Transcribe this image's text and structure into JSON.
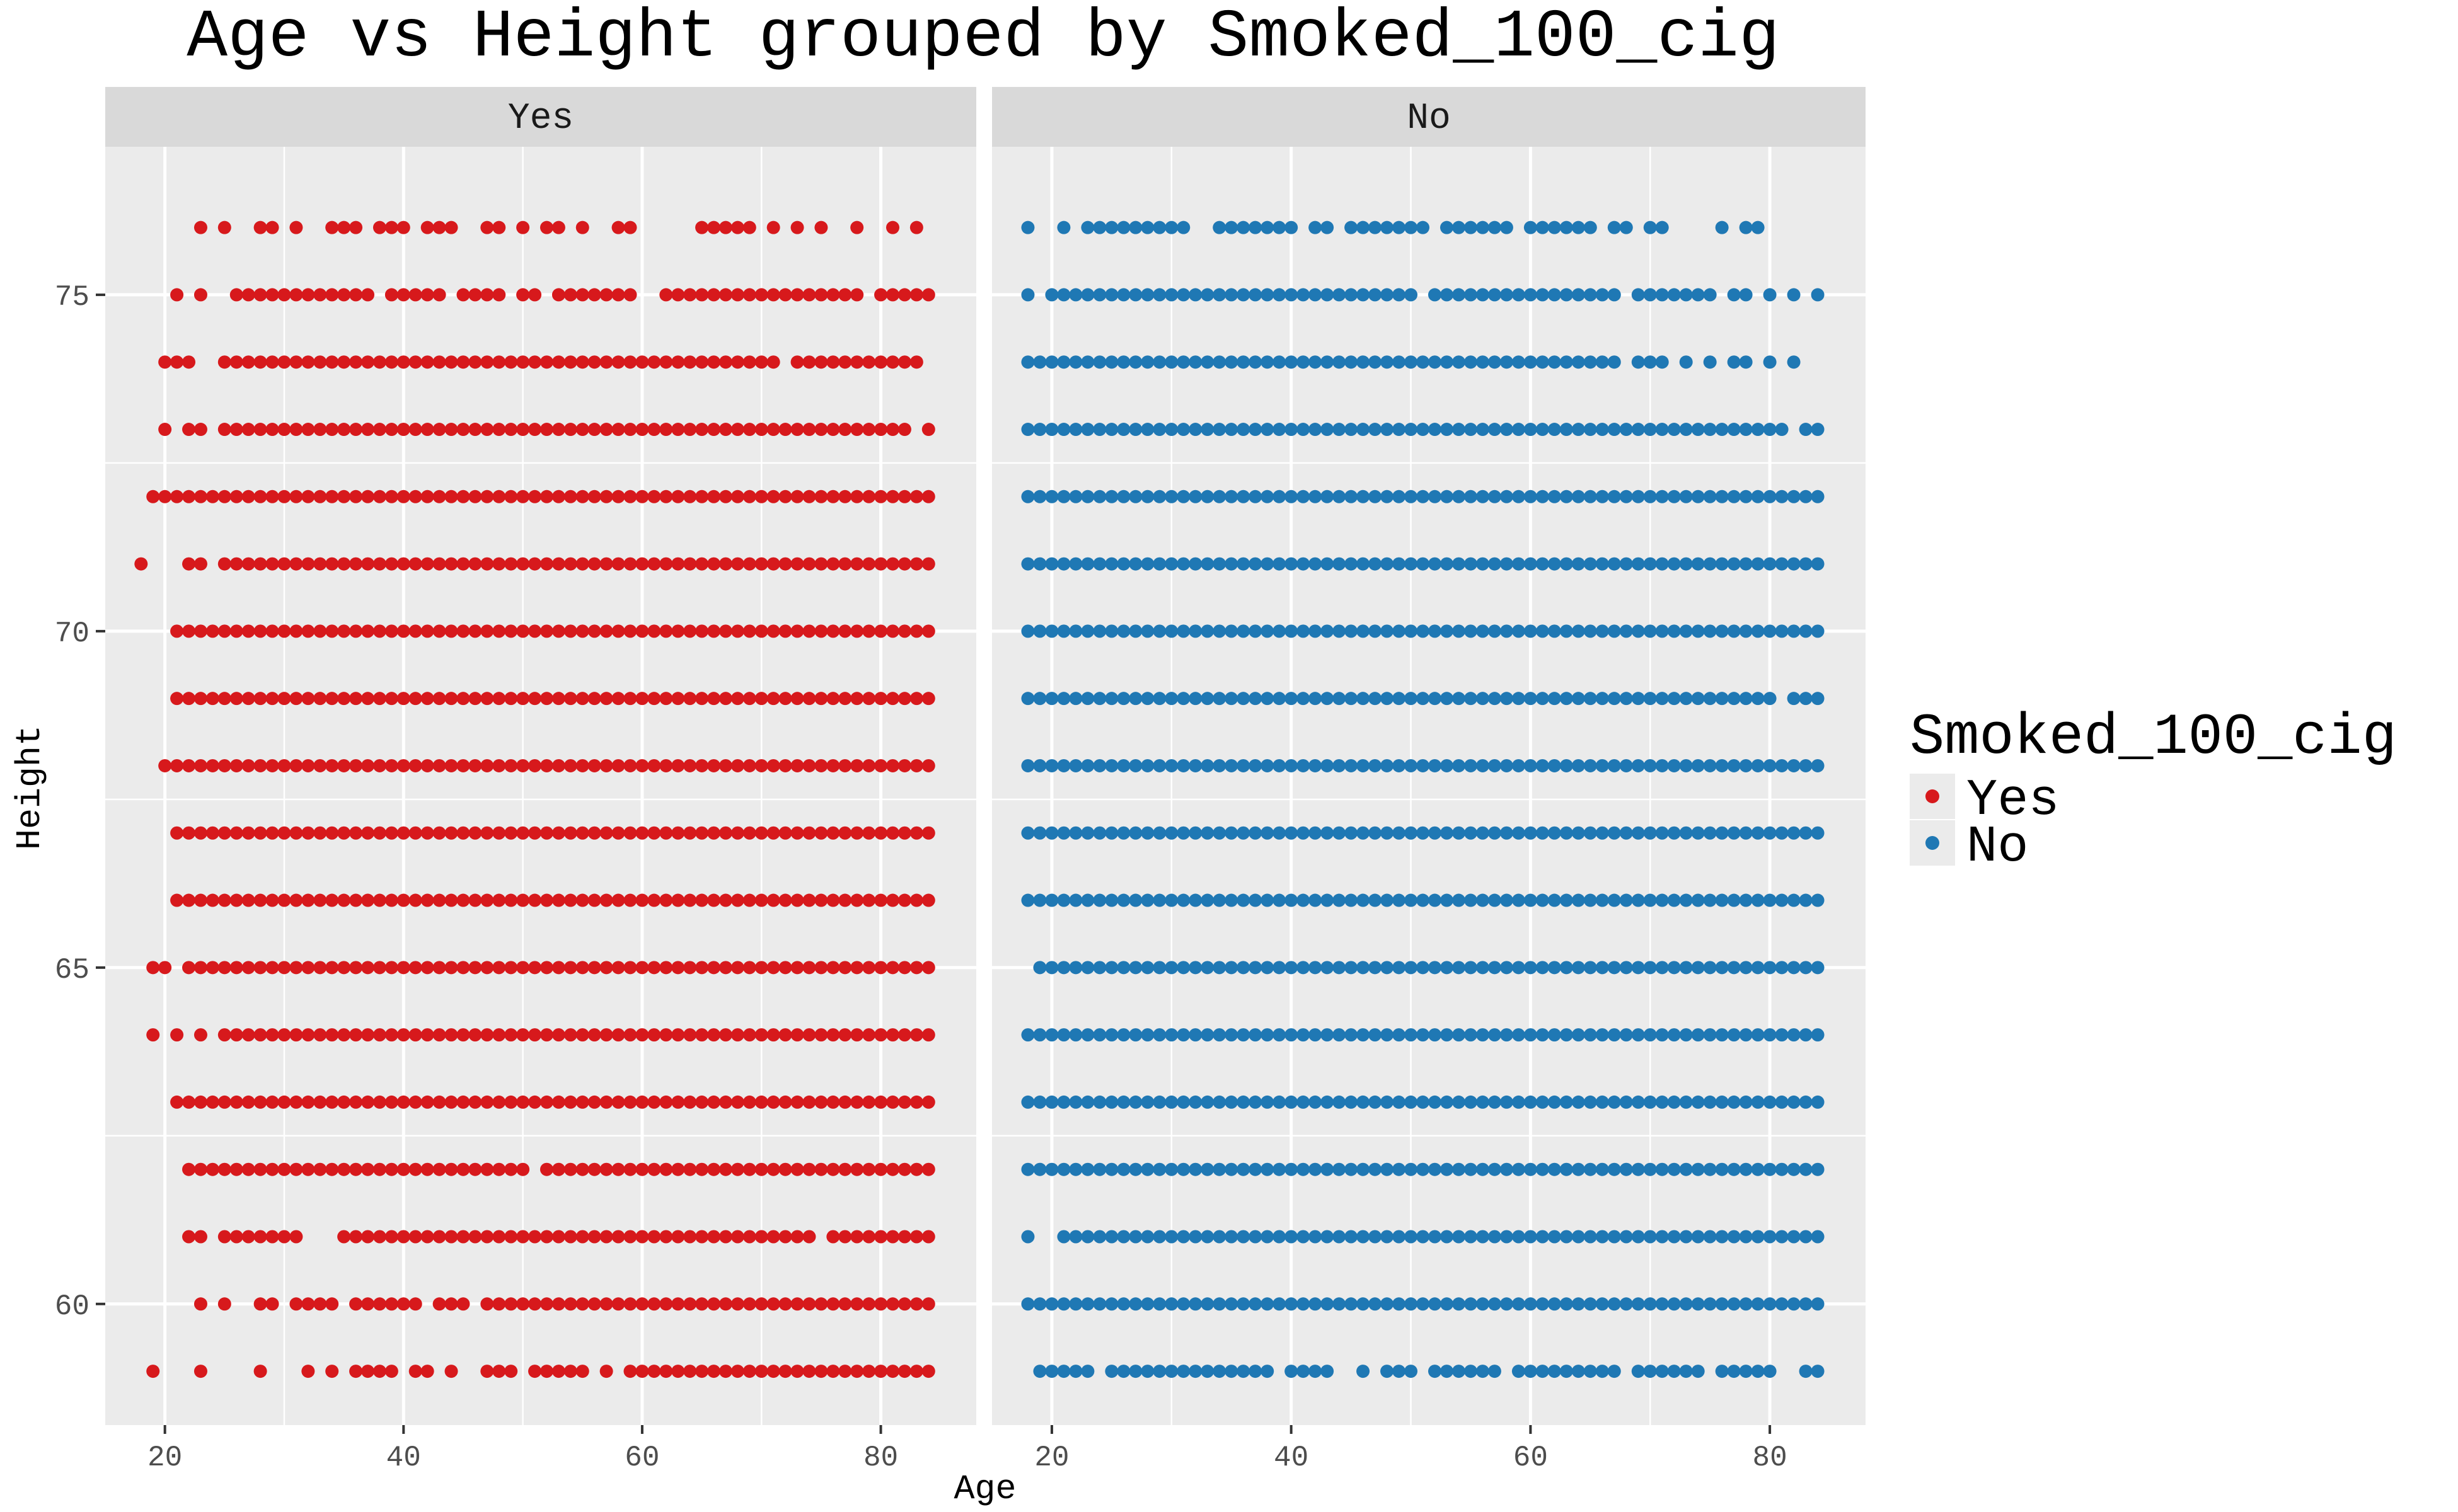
{
  "chart_data": {
    "type": "scatter",
    "title": "Age vs Height grouped by Smoked_100_cig",
    "xlabel": "Age",
    "ylabel": "Height",
    "facets": [
      "Yes",
      "No"
    ],
    "legend": {
      "title": "Smoked_100_cig",
      "position": "right",
      "entries": [
        {
          "label": "Yes",
          "color": "#d7191c"
        },
        {
          "label": "No",
          "color": "#1f78b4"
        }
      ]
    },
    "xlim": [
      15,
      88
    ],
    "ylim": [
      58.2,
      77.2
    ],
    "x_ticks": [
      20,
      40,
      60,
      80
    ],
    "y_ticks": [
      60,
      65,
      70,
      75
    ],
    "grid": true,
    "series": [
      {
        "name": "Yes",
        "color": "#d7191c",
        "rows": [
          {
            "height": 76,
            "ages": [
              23,
              25,
              28,
              29,
              31,
              34,
              35,
              36,
              38,
              39,
              40,
              42,
              43,
              44,
              47,
              48,
              50,
              52,
              53,
              55,
              58,
              59,
              65,
              66,
              67,
              68,
              69,
              71,
              73,
              75,
              78,
              81,
              83
            ]
          },
          {
            "height": 75,
            "ages": [
              21,
              23,
              "26-37",
              39,
              40,
              41,
              42,
              43,
              "45-48",
              50,
              51,
              "53-59",
              "62-78",
              "80-84"
            ]
          },
          {
            "height": 74,
            "ages": [
              20,
              21,
              22,
              "25-71",
              "73-83"
            ]
          },
          {
            "height": 73,
            "ages": [
              20,
              22,
              23,
              "25-82",
              84
            ]
          },
          {
            "height": 72,
            "ages": [
              "19-84"
            ]
          },
          {
            "height": 71,
            "ages": [
              18,
              22,
              23,
              "25-84"
            ]
          },
          {
            "height": 70,
            "ages": [
              "21-84"
            ]
          },
          {
            "height": 69,
            "ages": [
              "21-84"
            ]
          },
          {
            "height": 68,
            "ages": [
              "20-84"
            ]
          },
          {
            "height": 67,
            "ages": [
              "21-84"
            ]
          },
          {
            "height": 66,
            "ages": [
              "21-84"
            ]
          },
          {
            "height": 65,
            "ages": [
              19,
              20,
              "22-84"
            ]
          },
          {
            "height": 64,
            "ages": [
              19,
              21,
              23,
              "25-84"
            ]
          },
          {
            "height": 63,
            "ages": [
              "21-84"
            ]
          },
          {
            "height": 62,
            "ages": [
              "22-50",
              "52-84"
            ]
          },
          {
            "height": 61,
            "ages": [
              22,
              23,
              "25-31",
              "35-74",
              "76-84"
            ]
          },
          {
            "height": 60,
            "ages": [
              23,
              25,
              28,
              29,
              "31-34",
              "36-41",
              "43-45",
              "47-84"
            ]
          },
          {
            "height": 59,
            "ages": [
              19,
              23,
              28,
              32,
              34,
              36,
              37,
              38,
              39,
              41,
              42,
              44,
              47,
              48,
              49,
              51,
              52,
              53,
              54,
              55,
              57,
              "59-84"
            ]
          }
        ]
      },
      {
        "name": "No",
        "color": "#1f78b4",
        "rows": [
          {
            "height": 76,
            "ages": [
              18,
              21,
              "23-31",
              "34-40",
              "42-43",
              "45-51",
              "53-58",
              "60-65",
              67,
              68,
              70,
              71,
              76,
              78,
              79
            ]
          },
          {
            "height": 75,
            "ages": [
              18,
              "20-50",
              "52-67",
              "69-75",
              77,
              78,
              80,
              82,
              84
            ]
          },
          {
            "height": 74,
            "ages": [
              "18-67",
              69,
              70,
              71,
              73,
              75,
              77,
              78,
              80,
              82
            ]
          },
          {
            "height": 73,
            "ages": [
              "18-81",
              83,
              84
            ]
          },
          {
            "height": 72,
            "ages": [
              "18-84"
            ]
          },
          {
            "height": 71,
            "ages": [
              "18-84"
            ]
          },
          {
            "height": 70,
            "ages": [
              "18-84"
            ]
          },
          {
            "height": 69,
            "ages": [
              "18-80",
              82,
              83,
              84
            ]
          },
          {
            "height": 68,
            "ages": [
              "18-84"
            ]
          },
          {
            "height": 67,
            "ages": [
              "18-84"
            ]
          },
          {
            "height": 66,
            "ages": [
              "18-84"
            ]
          },
          {
            "height": 65,
            "ages": [
              "19-84"
            ]
          },
          {
            "height": 64,
            "ages": [
              "18-84"
            ]
          },
          {
            "height": 63,
            "ages": [
              "18-84"
            ]
          },
          {
            "height": 62,
            "ages": [
              "18-84"
            ]
          },
          {
            "height": 61,
            "ages": [
              18,
              "21-84"
            ]
          },
          {
            "height": 60,
            "ages": [
              "18-84"
            ]
          },
          {
            "height": 59,
            "ages": [
              19,
              "20-23",
              "25-38",
              "40-43",
              46,
              "48-50",
              "52-57",
              "59-67",
              "69-74",
              "76-80",
              83,
              84
            ]
          }
        ]
      }
    ]
  }
}
